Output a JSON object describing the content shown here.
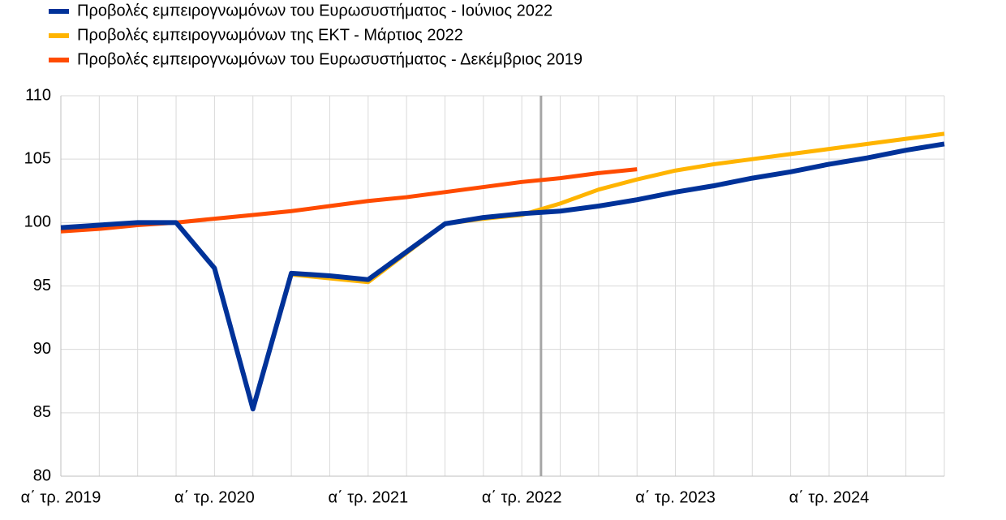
{
  "chart_data": {
    "type": "line",
    "categories": [
      "α΄ τρ. 2019",
      null,
      null,
      null,
      "α΄ τρ. 2020",
      null,
      null,
      null,
      "α΄ τρ. 2021",
      null,
      null,
      null,
      "α΄ τρ. 2022",
      null,
      null,
      null,
      "α΄ τρ. 2023",
      null,
      null,
      null,
      "α΄ τρ. 2024",
      null,
      null,
      null
    ],
    "series": [
      {
        "name": "Προβολές εμπειρογνωμόνων του Ευρωσυστήματος - Ιούνιος 2022",
        "color": "#003299",
        "values": [
          99.6,
          99.8,
          100.0,
          100.0,
          96.4,
          85.3,
          96.0,
          95.8,
          95.5,
          97.7,
          99.9,
          100.4,
          100.7,
          100.9,
          101.3,
          101.8,
          102.4,
          102.9,
          103.5,
          104.0,
          104.6,
          105.1,
          105.7,
          106.2
        ]
      },
      {
        "name": "Προβολές εμπειρογνωμόνων της ΕΚΤ - Μάρτιος 2022",
        "color": "#ffb400",
        "values": [
          99.6,
          99.8,
          100.0,
          100.0,
          96.4,
          85.3,
          95.9,
          95.6,
          95.3,
          97.6,
          99.9,
          100.3,
          100.6,
          101.5,
          102.6,
          103.4,
          104.1,
          104.6,
          105.0,
          105.4,
          105.8,
          106.2,
          106.6,
          107.0
        ]
      },
      {
        "name": "Προβολές εμπειρογνωμόνων του Ευρωσυστήματος - Δεκέμβριος 2019",
        "color": "#ff4b00",
        "values": [
          99.3,
          99.5,
          99.8,
          100.0,
          100.3,
          100.6,
          100.9,
          101.3,
          101.7,
          102.0,
          102.4,
          102.8,
          103.2,
          103.5,
          103.9,
          104.2,
          null,
          null,
          null,
          null,
          null,
          null,
          null,
          null
        ]
      }
    ],
    "ylim": [
      80,
      110
    ],
    "yticks": [
      80,
      85,
      90,
      95,
      100,
      105,
      110
    ],
    "grid": true,
    "legend": "top-left"
  }
}
